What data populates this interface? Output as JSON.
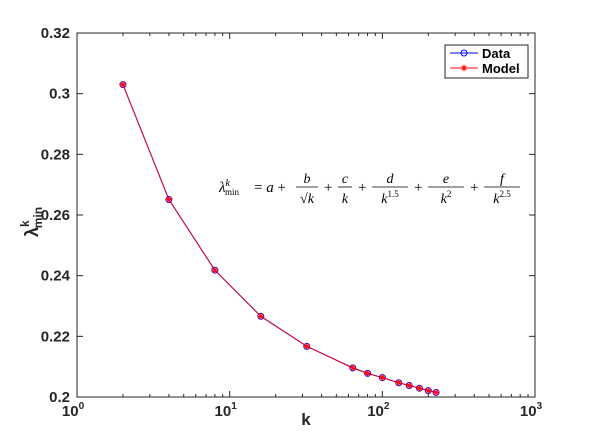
{
  "chart_data": {
    "type": "line",
    "xscale": "log",
    "xlabel": "k",
    "ylabel": {
      "base": "λ",
      "sup": "k",
      "sub": "min"
    },
    "xlim": [
      1,
      1000
    ],
    "ylim": [
      0.2,
      0.32
    ],
    "xticks": [
      {
        "value": 1,
        "base": "10",
        "exp": "0"
      },
      {
        "value": 10,
        "base": "10",
        "exp": "1"
      },
      {
        "value": 100,
        "base": "10",
        "exp": "2"
      },
      {
        "value": 1000,
        "base": "10",
        "exp": "3"
      }
    ],
    "yticks": [
      "0.2",
      "0.22",
      "0.24",
      "0.26",
      "0.28",
      "0.3",
      "0.32"
    ],
    "grid": false,
    "legend_position": "top-right",
    "series": [
      {
        "name": "Data",
        "color": "#0000ff",
        "marker": "circle",
        "x": [
          2,
          4,
          8,
          16,
          32,
          64,
          80,
          100,
          128,
          150,
          175,
          200,
          225
        ],
        "y": [
          0.303,
          0.2651,
          0.2418,
          0.2266,
          0.2167,
          0.2096,
          0.2078,
          0.2064,
          0.2047,
          0.2038,
          0.2029,
          0.2021,
          0.2015
        ]
      },
      {
        "name": "Model",
        "color": "#ff0000",
        "marker": "asterisk",
        "x": [
          2,
          4,
          8,
          16,
          32,
          64,
          80,
          100,
          128,
          150,
          175,
          200,
          225
        ],
        "y": [
          0.303,
          0.2651,
          0.2418,
          0.2266,
          0.2167,
          0.2096,
          0.2078,
          0.2064,
          0.2047,
          0.2038,
          0.2029,
          0.2021,
          0.2015
        ]
      }
    ],
    "annotation": {
      "lhs_base": "λ",
      "lhs_sup": "k",
      "lhs_sub": "min",
      "terms": [
        {
          "plain": "= a +"
        },
        {
          "num": "b",
          "den": "√k"
        },
        {
          "plain": "+"
        },
        {
          "num": "c",
          "den": "k"
        },
        {
          "plain": "+"
        },
        {
          "num": "d",
          "den": "k",
          "den_exp": "1.5"
        },
        {
          "plain": "+"
        },
        {
          "num": "e",
          "den": "k",
          "den_exp": "2"
        },
        {
          "plain": "+"
        },
        {
          "num": "f",
          "den": "k",
          "den_exp": "2.5"
        }
      ]
    }
  }
}
